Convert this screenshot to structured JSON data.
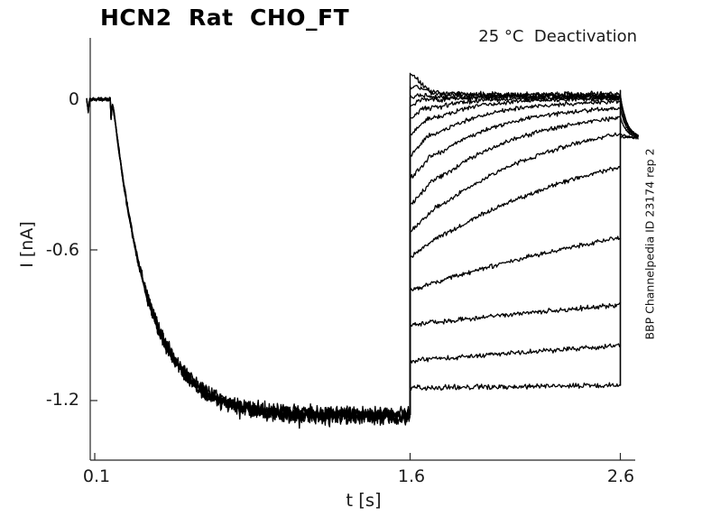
{
  "chart_data": {
    "type": "line",
    "title": "HCN2  Rat  CHO_FT",
    "subtitle": "25 °C  Deactivation",
    "xlabel": "t [s]",
    "ylabel": "I [nA]",
    "side_note": "BBP Channelpedia ID 23174 rep 2",
    "trace_color": "#000000",
    "axis_color": "#262626",
    "x_range": [
      0.078,
      2.69
    ],
    "y_range": [
      -1.44,
      0.24
    ],
    "x_ticks": [
      {
        "v": 0.1,
        "label": "0.1"
      },
      {
        "v": 1.6,
        "label": "1.6"
      },
      {
        "v": 2.6,
        "label": "2.6"
      }
    ],
    "y_ticks": [
      {
        "v": 0,
        "label": "0"
      },
      {
        "v": -0.6,
        "label": "-0.6"
      },
      {
        "v": -1.2,
        "label": "-1.2"
      }
    ],
    "activation": {
      "t_start": 0.062,
      "t_step": 0.176,
      "t_end": 1.6,
      "i_max": -1.26,
      "tau": 0.17,
      "delay": 0.009,
      "cap_spike": -0.1,
      "blip_t": 0.069,
      "blip_amp": -0.05,
      "end_level": -1.257,
      "overlays": 5
    },
    "deactivation_sweeps": [
      {
        "start": 0.09,
        "end": 0.02,
        "tau": 0.055,
        "bump": 0.022,
        "bump_c": 0.03,
        "noise": 0.007
      },
      {
        "start": 0.047,
        "end": 0.016,
        "tau": 0.075,
        "bump": 0.014,
        "bump_c": 0.045,
        "noise": 0.007
      },
      {
        "start": 0.004,
        "end": 0.012,
        "tau": 0.25,
        "bump": 0.01,
        "bump_c": 0.055,
        "noise": 0.007
      },
      {
        "start": -0.029,
        "end": 0.009,
        "tau": 0.115,
        "bump": 0.012,
        "bump_c": 0.055,
        "noise": 0.007
      },
      {
        "start": -0.083,
        "end": 0.005,
        "tau": 0.155,
        "bump": 0.014,
        "bump_c": 0.065,
        "noise": 0.007
      },
      {
        "start": -0.144,
        "end": 0.001,
        "tau": 0.2,
        "bump": 0.016,
        "bump_c": 0.075,
        "noise": 0.006
      },
      {
        "start": -0.223,
        "end": -0.011,
        "tau": 0.26,
        "bump": 0.016,
        "bump_c": 0.085,
        "noise": 0.006
      },
      {
        "start": -0.316,
        "end": -0.036,
        "tau": 0.34,
        "bump": 0.014,
        "bump_c": 0.095,
        "noise": 0.006
      },
      {
        "start": -0.42,
        "end": -0.072,
        "tau": 0.45,
        "bump": 0.012,
        "bump_c": 0.105,
        "noise": 0.006
      },
      {
        "start": -0.528,
        "end": -0.137,
        "tau": 0.62,
        "bump": 0.009,
        "bump_c": 0.115,
        "noise": 0.006
      },
      {
        "start": -0.629,
        "end": -0.269,
        "tau": 0.9,
        "bump": 0.007,
        "bump_c": 0.12,
        "noise": 0.006
      },
      {
        "start": -0.762,
        "end": -0.55,
        "tau": 1.8,
        "bump": 0.0,
        "bump_c": 0.1,
        "noise": 0.006
      },
      {
        "start": -0.898,
        "end": -0.819,
        "tau": 3.5,
        "bump": 0.0,
        "bump_c": 0.1,
        "noise": 0.0065
      },
      {
        "start": -1.042,
        "end": -0.981,
        "tau": 4.5,
        "bump": 0.0,
        "bump_c": 0.1,
        "noise": 0.0065
      },
      {
        "start": -1.15,
        "end": -1.139,
        "tau": 6.0,
        "bump": 0.0,
        "bump_c": 0.1,
        "noise": 0.007
      }
    ],
    "step_line": {
      "t": 2.6,
      "from": -1.139,
      "to": 0.035
    },
    "tail": {
      "t_end": 2.685,
      "level": -0.155,
      "tau": 0.03
    }
  }
}
